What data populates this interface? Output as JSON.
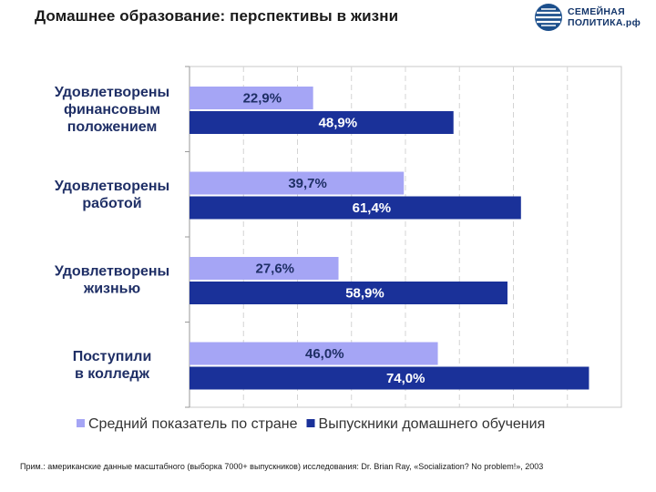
{
  "header": {
    "title": "Домашнее образование: перспективы в жизни",
    "logo_line1": "СЕМЕЙНАЯ",
    "logo_line2": "ПОЛИТИКА.рф"
  },
  "chart_data": {
    "type": "bar",
    "orientation": "horizontal",
    "categories": [
      [
        "Удовлетворены",
        "финансовым",
        "положением"
      ],
      [
        "Удовлетворены",
        "работой"
      ],
      [
        "Удовлетворены",
        "жизнью"
      ],
      [
        "Поступили",
        "в колледж"
      ]
    ],
    "series": [
      {
        "name": "Средний показатель по стране",
        "values": [
          22.9,
          39.7,
          27.6,
          46.0
        ],
        "labels": [
          "22,9%",
          "39,7%",
          "27,6%",
          "46,0%"
        ],
        "color": "#a5a5f5",
        "label_color": "#1f2f66"
      },
      {
        "name": "Выпускники домашнего обучения",
        "values": [
          48.9,
          61.4,
          58.9,
          74.0
        ],
        "labels": [
          "48,9%",
          "61,4%",
          "58,9%",
          "74,0%"
        ],
        "color": "#1a3199",
        "label_color": "#ffffff"
      }
    ],
    "xlim": [
      0,
      80
    ],
    "grid": true,
    "legend_position": "bottom"
  },
  "footer": {
    "note": "Прим.: американские данные масштабного (выборка 7000+ выпускников) исследования: Dr. Brian Ray, «Socialization? No problem!», 2003"
  },
  "colors": {
    "plot_border": "#c8c8c8",
    "grid": "#d4d4d4"
  }
}
